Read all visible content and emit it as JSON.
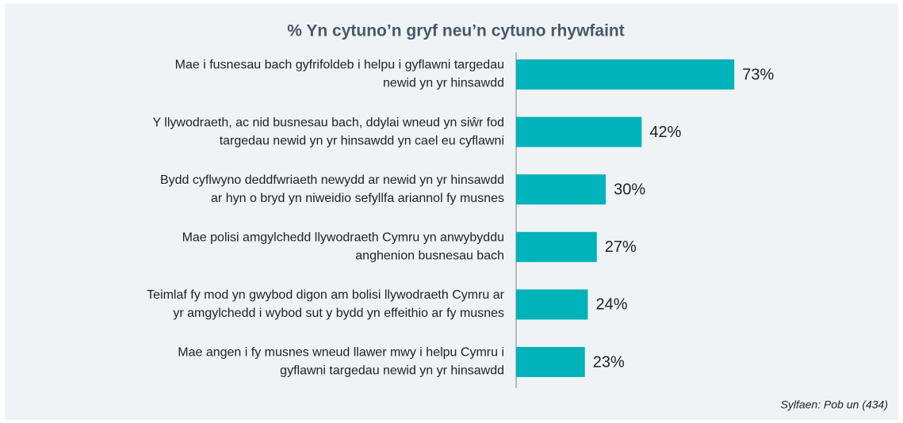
{
  "chart_data": {
    "type": "hbar",
    "title": "% Yn cytuno’n gryf neu’n cytuno rhywfaint",
    "categories": [
      [
        "Mae i fusnesau bach gyfrifoldeb i helpu i gyflawni targedau",
        "newid yn yr hinsawdd"
      ],
      [
        "Y llywodraeth, ac nid busnesau bach, ddylai wneud yn siŵr fod",
        "targedau newid yn yr hinsawdd yn cael eu cyflawni"
      ],
      [
        "Bydd cyflwyno deddfwriaeth newydd ar newid yn yr hinsawdd",
        "ar hyn o bryd yn niweidio sefyllfa ariannol fy musnes"
      ],
      [
        "Mae polisi amgylchedd llywodraeth Cymru yn anwybyddu",
        "anghenion busnesau bach"
      ],
      [
        "Teimlaf fy mod yn gwybod digon am bolisi llywodraeth Cymru ar",
        "yr amgylchedd i wybod sut y bydd yn effeithio ar fy musnes"
      ],
      [
        "Mae angen i fy musnes wneud llawer mwy i helpu Cymru i",
        "gyflawni targedau newid yn yr hinsawdd"
      ]
    ],
    "values": [
      73,
      42,
      30,
      27,
      24,
      23
    ],
    "value_labels": [
      "73%",
      "42%",
      "30%",
      "27%",
      "24%",
      "23%"
    ],
    "color": "#00b2b9",
    "source": "Sylfaen: Pob un (434)"
  }
}
